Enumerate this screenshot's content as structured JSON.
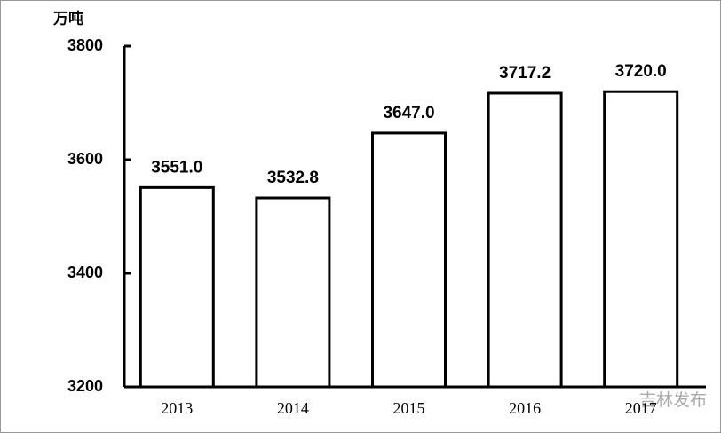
{
  "chart_data": {
    "type": "bar",
    "y_axis_label": "万吨",
    "categories": [
      "2013",
      "2014",
      "2015",
      "2016",
      "2017"
    ],
    "values": [
      3551.0,
      3532.8,
      3647.0,
      3717.2,
      3720.0
    ],
    "value_labels": [
      "3551.0",
      "3532.8",
      "3647.0",
      "3717.2",
      "3720.0"
    ],
    "color": "#ffffff",
    "edgecolor": "#000000",
    "ylim": [
      3200,
      3800
    ],
    "yticks": [
      3200,
      3400,
      3600,
      3800
    ],
    "watermark": "吉林发布"
  }
}
